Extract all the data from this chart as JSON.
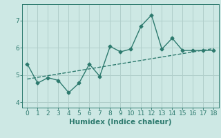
{
  "x": [
    0,
    1,
    2,
    3,
    4,
    5,
    6,
    7,
    8,
    9,
    10,
    11,
    12,
    13,
    14,
    15,
    16,
    17,
    18
  ],
  "y_series": [
    5.4,
    4.7,
    4.9,
    4.8,
    4.35,
    4.7,
    5.4,
    4.95,
    6.05,
    5.85,
    5.95,
    6.8,
    7.2,
    5.95,
    6.35,
    5.9,
    5.9,
    5.9,
    5.9
  ],
  "trend_x": [
    0,
    18
  ],
  "trend_y": [
    4.85,
    5.97
  ],
  "line_color": "#2d7a6e",
  "bg_color": "#cde8e4",
  "grid_color": "#b0ceca",
  "xlabel": "Humidex (Indice chaleur)",
  "ylim": [
    3.8,
    7.6
  ],
  "xlim": [
    -0.5,
    18.5
  ],
  "yticks": [
    4,
    5,
    6,
    7
  ],
  "xticks": [
    0,
    1,
    2,
    3,
    4,
    5,
    6,
    7,
    8,
    9,
    10,
    11,
    12,
    13,
    14,
    15,
    16,
    17,
    18
  ],
  "marker": "D",
  "markersize": 2.5,
  "linewidth": 1.0,
  "xlabel_fontsize": 7.5,
  "tick_fontsize": 6.5
}
